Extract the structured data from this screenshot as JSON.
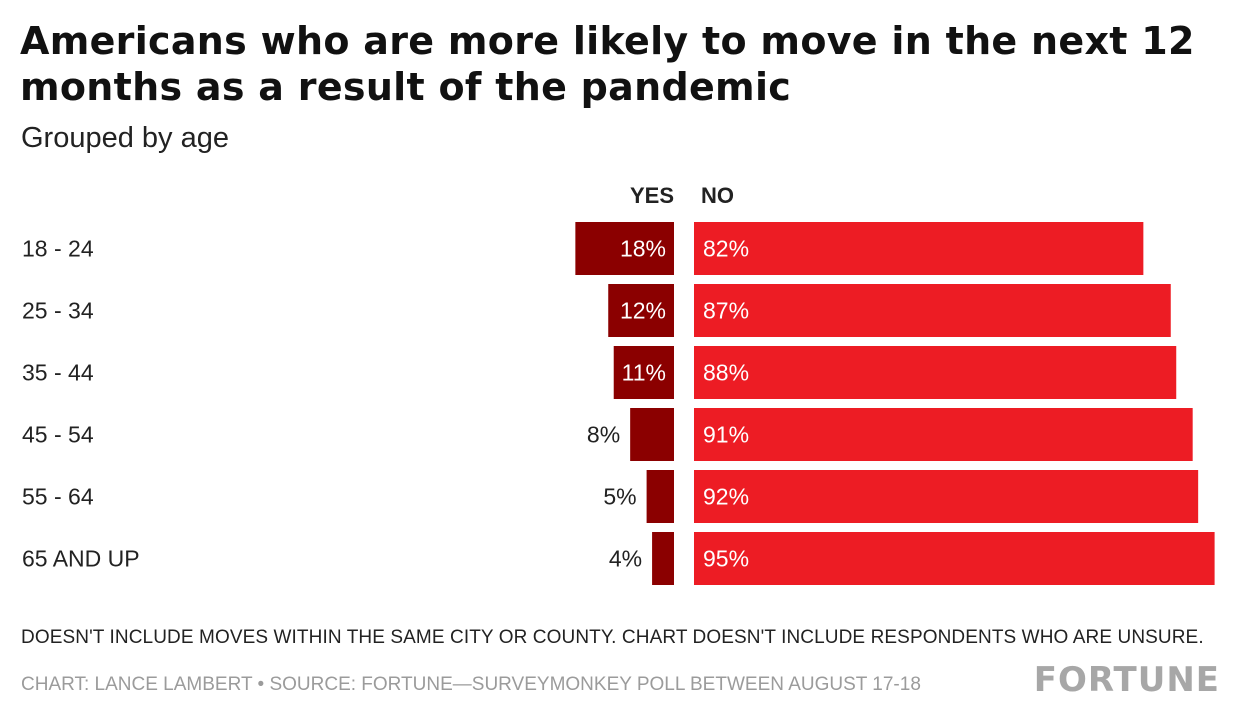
{
  "title": "Americans who are more likely to move in the next 12 months as a result of the pandemic",
  "subtitle": "Grouped by age",
  "note": "DOESN'T INCLUDE MOVES WITHIN THE SAME CITY OR COUNTY. CHART DOESN'T INCLUDE RESPONDENTS WHO ARE UNSURE.",
  "credit": "CHART: LANCE LAMBERT • SOURCE: FORTUNE—SURVEYMONKEY POLL BETWEEN AUGUST 17-18",
  "logo": "FORTUNE",
  "colors": {
    "yes": "#8b0000",
    "no": "#ed1c24"
  },
  "chart_data": {
    "type": "bar",
    "categories": [
      "18 - 24",
      "25 - 34",
      "35 - 44",
      "45 - 54",
      "55 - 64",
      "65 AND UP"
    ],
    "series": [
      {
        "name": "YES",
        "values": [
          18,
          12,
          11,
          8,
          5,
          4
        ],
        "labels": [
          "18%",
          "12%",
          "11%",
          "8%",
          "5%",
          "4%"
        ]
      },
      {
        "name": "NO",
        "values": [
          82,
          87,
          88,
          91,
          92,
          95
        ],
        "labels": [
          "82%",
          "87%",
          "88%",
          "91%",
          "92%",
          "95%"
        ]
      }
    ],
    "unit": "%",
    "xlim": [
      0,
      100
    ],
    "grid": false,
    "legend": "column headers above bars"
  }
}
